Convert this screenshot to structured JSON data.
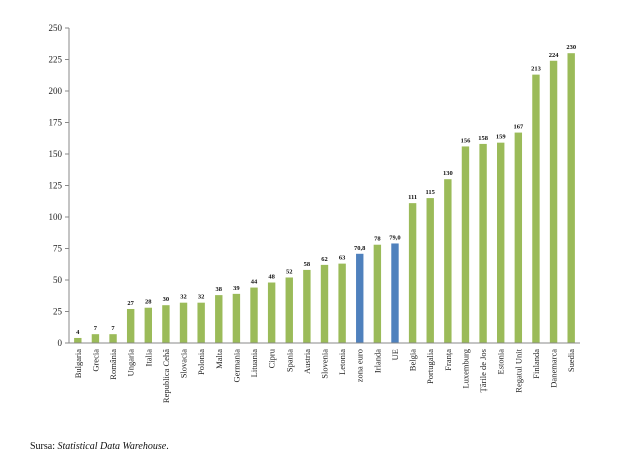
{
  "chart_data": {
    "type": "bar",
    "title": "",
    "xlabel": "",
    "ylabel": "",
    "ylim": [
      0,
      250
    ],
    "yticks": [
      0,
      25,
      50,
      75,
      100,
      125,
      150,
      175,
      200,
      225,
      250
    ],
    "grid": false,
    "legend": "none",
    "categories": [
      "Bulgaria",
      "Grecia",
      "România",
      "Ungaria",
      "Italia",
      "Republica Cehă",
      "Slovacia",
      "Polonia",
      "Malta",
      "Germania",
      "Lituania",
      "Cipru",
      "Spania",
      "Austria",
      "Slovenia",
      "Letonia",
      "zona euro",
      "Irlanda",
      "UE",
      "Belgia",
      "Portugalia",
      "Franța",
      "Luxemburg",
      "Țările de Jos",
      "Estonia",
      "Regatul Unit",
      "Finlanda",
      "Danemarca",
      "Suedia"
    ],
    "values": [
      4,
      7,
      7,
      27,
      28,
      30,
      32,
      32,
      38,
      39,
      44,
      48,
      52,
      58,
      62,
      63,
      70.8,
      78,
      79.0,
      111,
      115,
      130,
      156,
      158,
      159,
      167,
      213,
      224,
      230
    ],
    "value_labels": [
      "4",
      "7",
      "7",
      "27",
      "28",
      "30",
      "32",
      "32",
      "38",
      "39",
      "44",
      "48",
      "52",
      "58",
      "62",
      "63",
      "70,8",
      "78",
      "79,0",
      "111",
      "115",
      "130",
      "156",
      "158",
      "159",
      "167",
      "213",
      "224",
      "230"
    ],
    "highlighted": [
      "zona euro",
      "UE"
    ],
    "colors": {
      "default": "#9BBB59",
      "highlight": "#4F81BD"
    }
  },
  "source": {
    "prefix": "Sursa: ",
    "name": "Statistical Data Warehouse",
    "suffix": "."
  }
}
